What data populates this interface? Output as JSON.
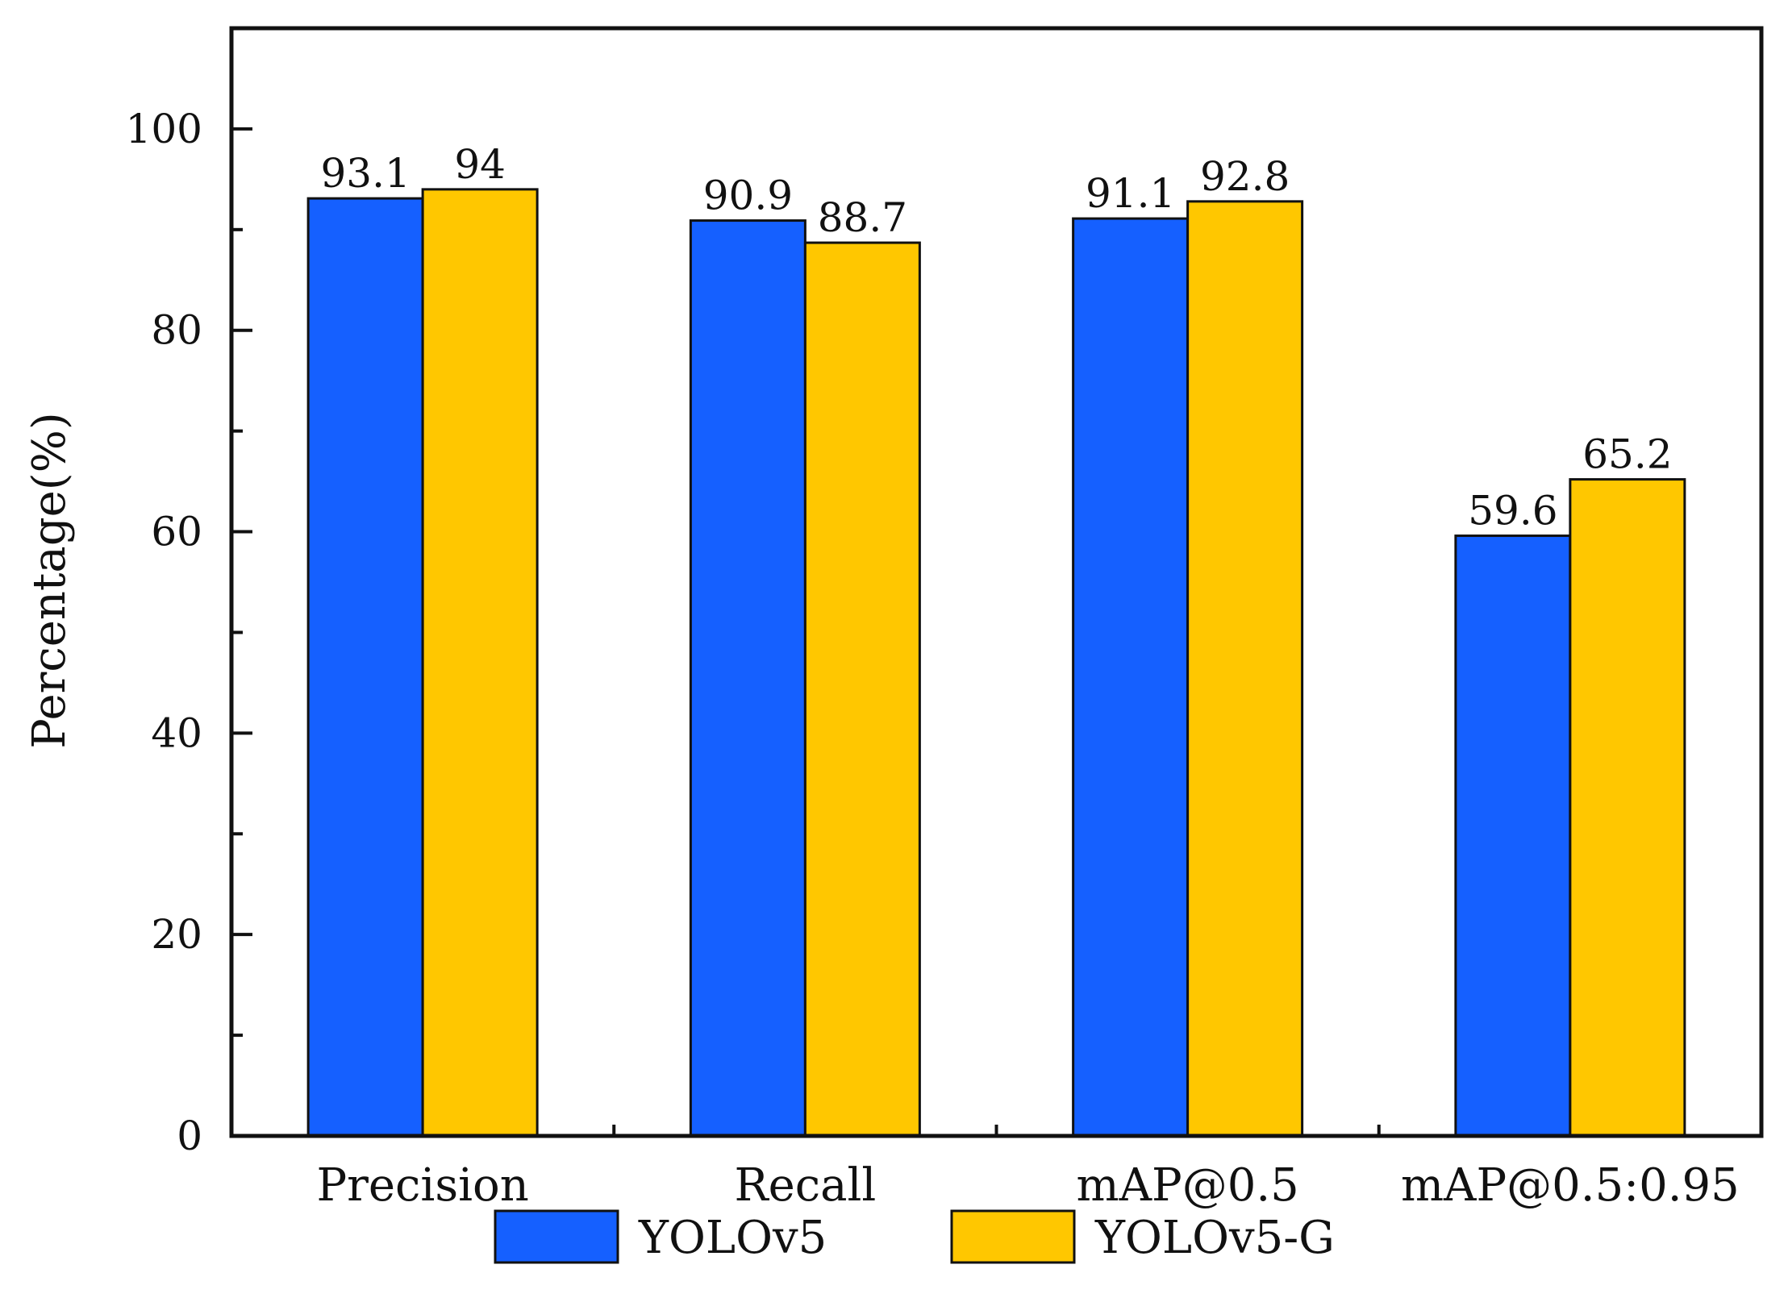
{
  "chart_data": {
    "type": "bar",
    "title": "",
    "xlabel": "",
    "ylabel": "Percentage(%)",
    "ylim": [
      0,
      110
    ],
    "yticks": [
      0,
      20,
      40,
      60,
      80,
      100
    ],
    "yticks_minor": [
      10,
      30,
      50,
      70,
      90
    ],
    "categories": [
      "Precision",
      "Recall",
      "mAP@0.5",
      "mAP@0.5:0.95"
    ],
    "series": [
      {
        "name": "YOLOv5",
        "color": "#1560ff",
        "values": [
          93.1,
          90.9,
          91.1,
          59.6
        ],
        "labels": [
          "93.1",
          "90.9",
          "91.1",
          "59.6"
        ]
      },
      {
        "name": "YOLOv5-G",
        "color": "#ffc700",
        "values": [
          94,
          88.7,
          92.8,
          65.2
        ],
        "labels": [
          "94",
          "88.7",
          "92.8",
          "65.2"
        ]
      }
    ],
    "legend": "bottom-center",
    "grid": false
  }
}
